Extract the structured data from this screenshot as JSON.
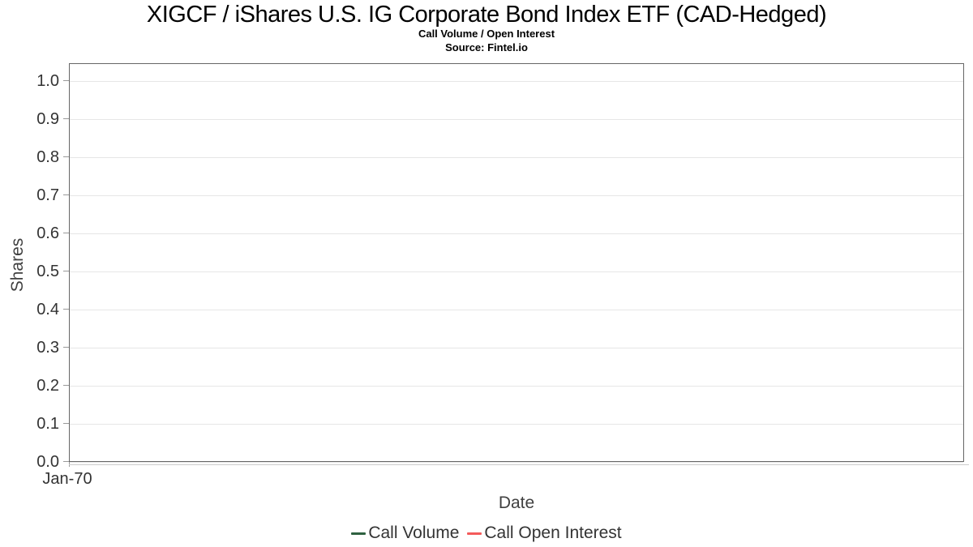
{
  "header": {
    "title": "XIGCF / iShares U.S. IG Corporate Bond Index ETF (CAD-Hedged)",
    "subtitle": "Call Volume / Open Interest",
    "source": "Source: Fintel.io"
  },
  "chart_data": {
    "type": "line",
    "title": "XIGCF / iShares U.S. IG Corporate Bond Index ETF (CAD-Hedged)",
    "subtitle": "Call Volume / Open Interest",
    "source_note": "Source: Fintel.io",
    "xlabel": "Date",
    "ylabel": "Shares",
    "ylim": [
      0.0,
      1.0
    ],
    "ytick_step": 0.1,
    "yticks": [
      "0.0",
      "0.1",
      "0.2",
      "0.3",
      "0.4",
      "0.5",
      "0.6",
      "0.7",
      "0.8",
      "0.9",
      "1.0"
    ],
    "xticks": [
      "Jan-70"
    ],
    "grid": true,
    "legend_position": "bottom-center",
    "series": [
      {
        "name": "Call Volume",
        "color": "#2e6140",
        "x": [],
        "values": []
      },
      {
        "name": "Call Open Interest",
        "color": "#f45b5b",
        "x": [],
        "values": []
      }
    ],
    "colors": {
      "gridline": "#e6e6e6",
      "plot_border": "#666666",
      "tick": "#999999",
      "tick_label": "#333333",
      "axis_title": "#404040",
      "title_text": "#000000"
    }
  }
}
